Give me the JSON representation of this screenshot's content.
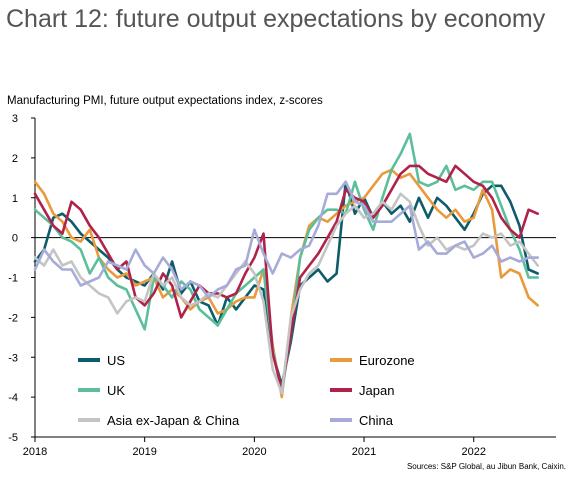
{
  "title": "Chart 12: future output expectations by economy",
  "source": "Sources: S&P Global, au Jibun Bank, Caixin.",
  "chart_data": {
    "type": "line",
    "title": "Chart 12: future output expectations by economy",
    "subtitle": "Manufacturing PMI, future output expectations index, z-scores",
    "xlabel": "",
    "ylabel": "",
    "ylim": [
      -5,
      3
    ],
    "yticks": [
      -5,
      -4,
      -3,
      -2,
      -1,
      0,
      1,
      2,
      3
    ],
    "xlim": [
      2018.0,
      2022.75
    ],
    "xticks": [
      {
        "value": 2018,
        "label": "2018"
      },
      {
        "value": 2019,
        "label": "2019"
      },
      {
        "value": 2020,
        "label": "2020"
      },
      {
        "value": 2021,
        "label": "2021"
      },
      {
        "value": 2022,
        "label": "2022"
      }
    ],
    "grid": false,
    "legend_position": "lower-inside",
    "x": [
      2018.0,
      2018.083,
      2018.167,
      2018.25,
      2018.333,
      2018.417,
      2018.5,
      2018.583,
      2018.667,
      2018.75,
      2018.833,
      2018.917,
      2019.0,
      2019.083,
      2019.167,
      2019.25,
      2019.333,
      2019.417,
      2019.5,
      2019.583,
      2019.667,
      2019.75,
      2019.833,
      2019.917,
      2020.0,
      2020.083,
      2020.167,
      2020.25,
      2020.333,
      2020.417,
      2020.5,
      2020.583,
      2020.667,
      2020.75,
      2020.833,
      2020.917,
      2021.0,
      2021.083,
      2021.167,
      2021.25,
      2021.333,
      2021.417,
      2021.5,
      2021.583,
      2021.667,
      2021.75,
      2021.833,
      2021.917,
      2022.0,
      2022.083,
      2022.167,
      2022.25,
      2022.333,
      2022.417,
      2022.5,
      2022.583
    ],
    "series": [
      {
        "name": "US",
        "color": "#0d5c6b",
        "values": [
          -0.6,
          -0.3,
          0.5,
          0.6,
          0.4,
          0.1,
          -0.1,
          -0.3,
          -0.5,
          -0.8,
          -1.0,
          -1.1,
          -1.2,
          -0.9,
          -1.3,
          -0.6,
          -1.4,
          -1.1,
          -1.6,
          -1.7,
          -2.2,
          -1.5,
          -1.8,
          -1.5,
          -1.2,
          -1.3,
          -2.9,
          -3.7,
          -2.6,
          -1.2,
          -1.0,
          -0.8,
          -1.1,
          -0.9,
          1.4,
          0.6,
          1.0,
          0.5,
          0.9,
          0.6,
          0.8,
          0.4,
          1.0,
          0.5,
          1.0,
          0.8,
          0.5,
          0.2,
          0.6,
          1.1,
          1.3,
          1.3,
          0.9,
          0.3,
          -0.8,
          -0.9
        ]
      },
      {
        "name": "Eurozone",
        "color": "#e89a3c",
        "values": [
          1.4,
          1.1,
          0.6,
          0.4,
          0.0,
          -0.1,
          0.2,
          -0.5,
          -0.8,
          -1.0,
          -0.9,
          -1.2,
          -1.1,
          -1.0,
          -1.5,
          -1.3,
          -1.5,
          -1.8,
          -1.6,
          -1.5,
          -1.9,
          -1.8,
          -1.6,
          -1.5,
          -1.5,
          -0.8,
          -2.7,
          -4.0,
          -2.0,
          -0.5,
          0.3,
          0.5,
          0.4,
          0.6,
          0.8,
          0.9,
          1.0,
          1.3,
          1.6,
          1.7,
          1.5,
          1.6,
          1.3,
          1.0,
          0.7,
          0.5,
          0.7,
          0.4,
          0.5,
          1.2,
          0.7,
          -1.0,
          -0.8,
          -0.9,
          -1.5,
          -1.7
        ]
      },
      {
        "name": "UK",
        "color": "#5cbf9a",
        "values": [
          0.7,
          0.5,
          0.3,
          0.0,
          -0.1,
          -0.3,
          -0.9,
          -0.5,
          -1.0,
          -1.2,
          -1.3,
          -1.8,
          -2.3,
          -1.0,
          -1.2,
          -1.5,
          -1.1,
          -1.3,
          -1.8,
          -2.0,
          -2.2,
          -1.8,
          -1.4,
          -1.2,
          -1.0,
          -0.8,
          -2.8,
          -3.9,
          -2.4,
          -0.5,
          0.2,
          0.5,
          0.7,
          0.7,
          0.6,
          1.4,
          0.7,
          0.2,
          1.0,
          1.7,
          2.1,
          2.6,
          1.4,
          1.3,
          1.4,
          1.8,
          1.2,
          1.3,
          1.2,
          1.4,
          1.4,
          0.8,
          0.2,
          -0.3,
          -1.0,
          -1.0
        ]
      },
      {
        "name": "Japan",
        "color": "#b0224a",
        "values": [
          1.1,
          0.7,
          0.3,
          0.1,
          0.9,
          0.7,
          0.3,
          0.0,
          -0.4,
          -0.8,
          -0.6,
          -1.5,
          -1.7,
          -1.4,
          -0.9,
          -1.2,
          -2.0,
          -1.6,
          -1.2,
          -1.4,
          -1.4,
          -1.5,
          -1.4,
          -0.9,
          -0.5,
          0.1,
          -2.9,
          -3.8,
          -2.4,
          -1.0,
          -0.7,
          -0.4,
          0.0,
          0.4,
          1.2,
          1.0,
          0.9,
          0.5,
          0.8,
          1.2,
          1.6,
          1.8,
          1.8,
          1.6,
          1.5,
          1.4,
          1.8,
          1.6,
          1.4,
          1.3,
          1.0,
          0.5,
          0.2,
          0.0,
          0.7,
          0.6
        ]
      },
      {
        "name": "Asia ex-Japan & China",
        "color": "#c4c4c4",
        "values": [
          -0.5,
          -0.7,
          -0.3,
          -0.7,
          -0.6,
          -1.0,
          -1.2,
          -1.4,
          -1.5,
          -1.9,
          -1.6,
          -1.5,
          -1.6,
          -0.9,
          -1.2,
          -1.0,
          -1.5,
          -1.7,
          -1.6,
          -1.4,
          -1.5,
          -1.2,
          -0.9,
          -0.6,
          -0.9,
          -1.6,
          -3.3,
          -3.9,
          -2.0,
          -1.3,
          -0.9,
          -0.7,
          -0.2,
          0.3,
          0.6,
          0.8,
          0.5,
          0.6,
          0.9,
          0.7,
          1.1,
          0.9,
          0.3,
          -0.2,
          0.0,
          -0.3,
          -0.2,
          -0.3,
          -0.2,
          0.1,
          0.0,
          0.1,
          -0.2,
          -0.1,
          -0.4,
          -0.7
        ]
      },
      {
        "name": "China",
        "color": "#a6abd8",
        "values": [
          -0.8,
          -0.3,
          -0.6,
          -0.8,
          -0.8,
          -1.2,
          -1.1,
          -1.0,
          -0.6,
          -0.7,
          -0.8,
          -0.3,
          -0.7,
          -0.9,
          -0.5,
          -0.8,
          -1.3,
          -1.1,
          -1.2,
          -1.5,
          -1.3,
          -1.2,
          -0.8,
          -0.7,
          0.2,
          -0.4,
          -0.9,
          -0.4,
          -0.5,
          -0.3,
          -0.2,
          0.3,
          1.1,
          1.1,
          1.4,
          0.9,
          0.8,
          0.4,
          0.4,
          0.4,
          0.6,
          0.8,
          -0.3,
          -0.1,
          -0.4,
          -0.4,
          -0.2,
          -0.1,
          -0.5,
          -0.4,
          -0.2,
          -0.6,
          -0.5,
          -0.6,
          -0.5,
          -0.5
        ]
      }
    ]
  }
}
